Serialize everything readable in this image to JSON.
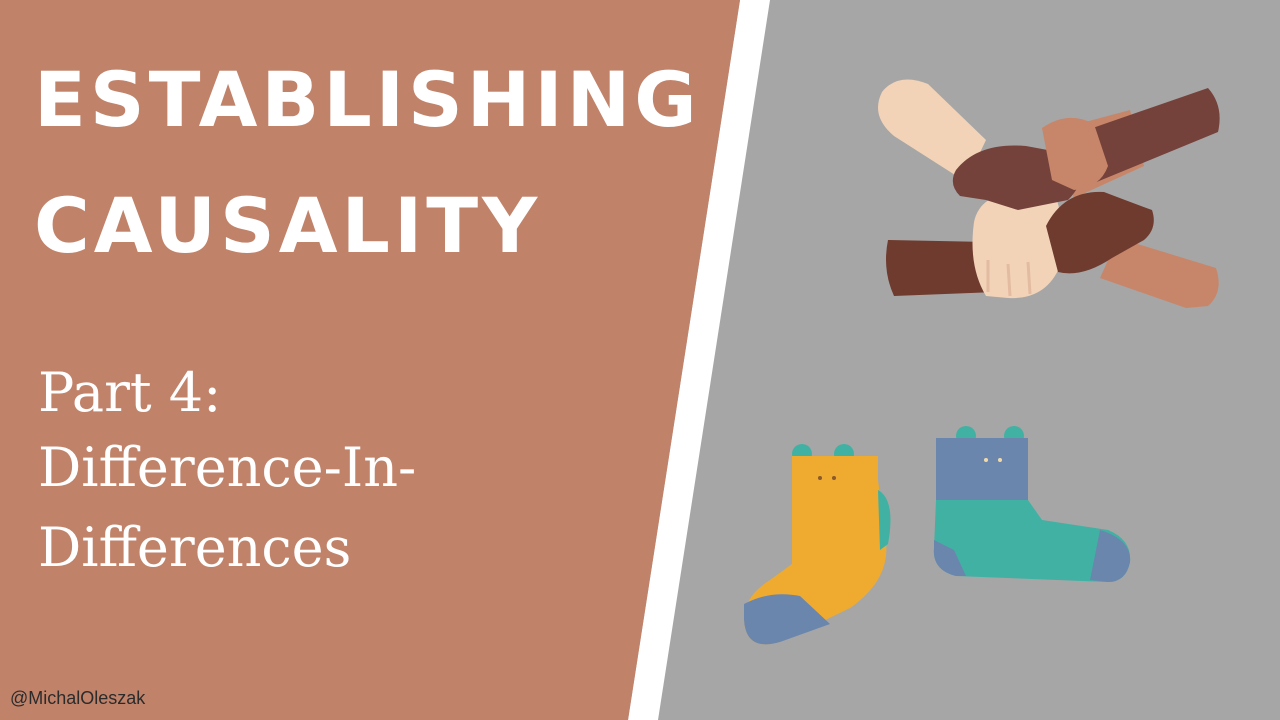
{
  "title": {
    "line1": "ESTABLISHING",
    "line2": "CAUSALITY"
  },
  "subtitle": {
    "line1": "Part 4:",
    "line2": "Difference-In-",
    "line3": "Differences"
  },
  "handle": "@MichalOleszak",
  "colors": {
    "left_panel": "#c1826a",
    "right_panel": "#a6a6a6",
    "divider": "#ffffff",
    "text": "#ffffff",
    "skin_light": "#f2d3b8",
    "skin_medium": "#c7866a",
    "skin_dark": "#6e3b2e",
    "skin_darker": "#74423a",
    "sock_yellow": "#efab2f",
    "sock_teal": "#41b1a3",
    "sock_blue": "#6a86ad"
  },
  "illustrations": {
    "hands": "four-hands-holding-wrists-icon",
    "socks": "pair-of-bear-socks-icon"
  }
}
